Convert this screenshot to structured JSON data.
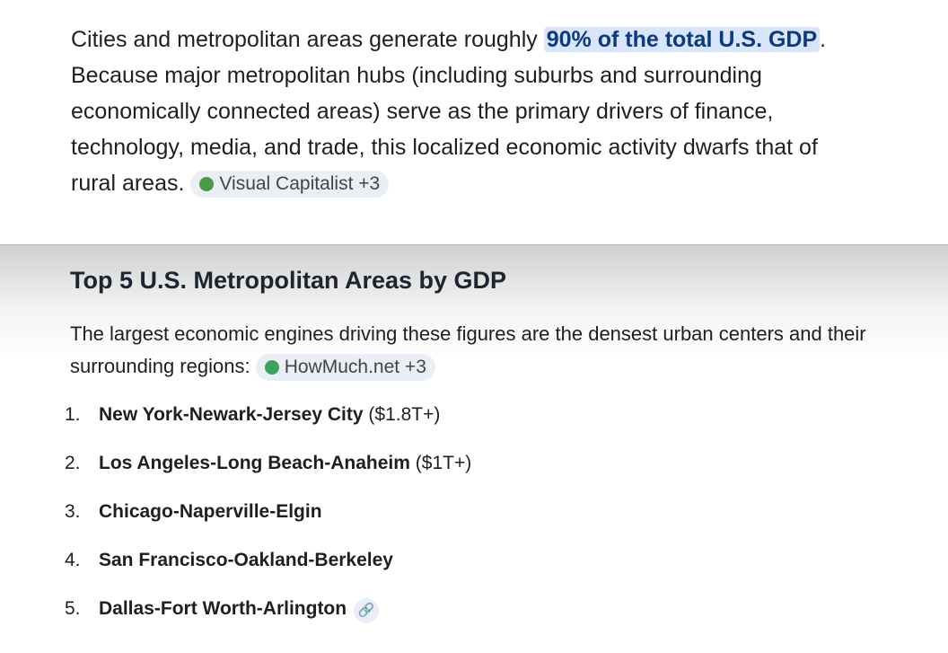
{
  "intro": {
    "before": "Cities and metropolitan areas generate roughly",
    "highlight": "90% of the total U.S. GDP",
    "after": ". Because major metropolitan hubs (including suburbs and surrounding economically connected areas) serve as the primary drivers of finance, technology, media, and trade, this localized economic activity dwarfs that of rural areas.",
    "source": "Visual Capitalist +3"
  },
  "section": {
    "title": "Top 5 U.S. Metropolitan Areas by GDP",
    "text": "The largest economic engines driving these figures are the densest urban centers and their surrounding regions:",
    "source": "HowMuch.net +3",
    "list": [
      {
        "number": "1.",
        "name": "New York-Newark-Jersey City",
        "note": "($1.8T+)"
      },
      {
        "number": "2.",
        "name": "Los Angeles-Long Beach-Anaheim",
        "note": "($1T+)"
      },
      {
        "number": "3.",
        "name": "Chicago-Naperville-Elgin"
      },
      {
        "number": "4.",
        "name": "San Francisco-Oakland-Berkeley"
      },
      {
        "number": "5.",
        "name": "Dallas-Fort Worth-Arlington"
      }
    ]
  }
}
